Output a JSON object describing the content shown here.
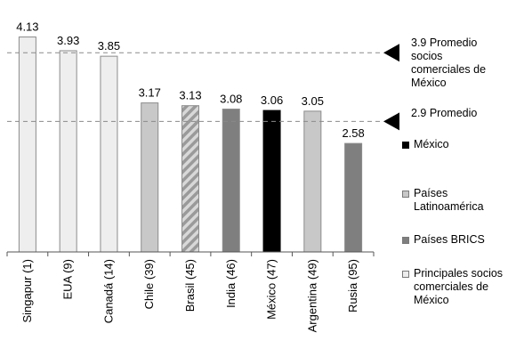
{
  "chart_data": {
    "type": "bar",
    "categories": [
      "Singapur (1)",
      "EUA (9)",
      "Canadá (14)",
      "Chile (39)",
      "Brasil (45)",
      "India (46)",
      "México (47)",
      "Argentina (49)",
      "Rusia (95)"
    ],
    "values": [
      4.13,
      3.93,
      3.85,
      3.17,
      3.13,
      3.08,
      3.06,
      3.05,
      2.58
    ],
    "value_labels": [
      "4.13",
      "3.93",
      "3.85",
      "3.17",
      "3.13",
      "3.08",
      "3.06",
      "3.05",
      "2.58"
    ],
    "groups": [
      "socios",
      "socios",
      "socios",
      "latam",
      "brics_hatched",
      "brics",
      "mexico",
      "latam",
      "brics"
    ],
    "ylim": [
      1.0,
      4.15
    ],
    "grid": false,
    "legend_position": "right",
    "colors": {
      "socios": "#eeeeee",
      "latam": "#c8c8c8",
      "brics": "#7f7f7f",
      "mexico": "#000000",
      "hatch_a": "#9a9a9a",
      "hatch_b": "#d8d8d8"
    },
    "reference_lines": [
      {
        "value": 3.9,
        "label": "3.9 Promedio socios comerciales de México",
        "label_lines": "3.9 Promedio\nsocios\ncomerciales de\nMéxico"
      },
      {
        "value": 2.9,
        "label": "2.9 Promedio",
        "label_lines": "2.9 Promedio"
      }
    ],
    "legend": [
      {
        "label": "México",
        "color": "#000000"
      },
      {
        "label": "Países Latinoamérica",
        "color": "#c8c8c8"
      },
      {
        "label": "Países BRICS",
        "color": "#7f7f7f"
      },
      {
        "label": "Principales socios comerciales de México",
        "color": "#eeeeee"
      }
    ]
  },
  "legend_text": {
    "mexico": "México",
    "latam": "Países\nLatinoamérica",
    "brics": "Países BRICS",
    "socios": "Principales socios\ncomerciales de\nMéxico"
  }
}
